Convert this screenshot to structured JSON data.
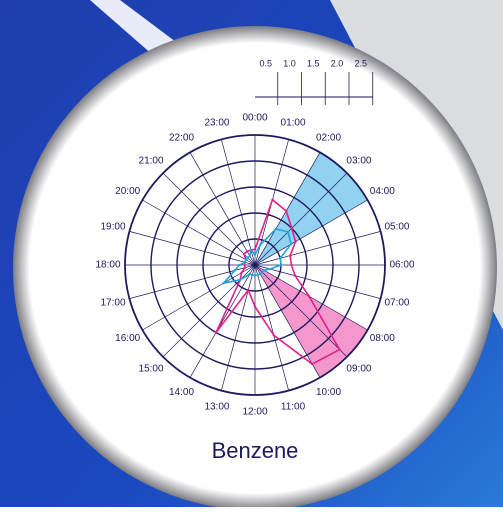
{
  "chart_data": {
    "type": "polar_line",
    "title": "Benzene",
    "categories": [
      "00:00",
      "01:00",
      "02:00",
      "03:00",
      "04:00",
      "05:00",
      "06:00",
      "07:00",
      "08:00",
      "09:00",
      "10:00",
      "11:00",
      "12:00",
      "13:00",
      "14:00",
      "15:00",
      "16:00",
      "17:00",
      "18:00",
      "19:00",
      "20:00",
      "21:00",
      "22:00",
      "23:00"
    ],
    "series": [
      {
        "color": "#e0218a",
        "values": [
          0.3,
          1.3,
          1.2,
          1.0,
          0.9,
          0.7,
          0.7,
          0.8,
          1.2,
          2.3,
          2.2,
          1.4,
          0.8,
          0.5,
          1.5,
          0.4,
          0.3,
          0.2,
          0.2,
          0.2,
          0.2,
          0.3,
          0.3,
          0.3
        ]
      },
      {
        "color": "#1fa3dc",
        "values": [
          0.2,
          0.4,
          0.8,
          0.9,
          0.8,
          0.5,
          0.5,
          0.3,
          0.2,
          0.2,
          0.2,
          0.2,
          0.2,
          0.2,
          0.2,
          0.4,
          0.7,
          0.4,
          0.3,
          0.2,
          0.2,
          0.2,
          0.2,
          0.3
        ]
      }
    ],
    "sectors": [
      {
        "start": 2,
        "end": 4,
        "color": "#86cdef"
      },
      {
        "start": 8,
        "end": 10,
        "color": "#f28cc6"
      }
    ],
    "rlim": [
      0,
      2.5
    ],
    "rticks": [
      0.5,
      {
        "value": 1,
        "label": "1.0"
      },
      1.5,
      {
        "value": 2,
        "label": "2.0"
      },
      2.5
    ],
    "grid": true
  }
}
